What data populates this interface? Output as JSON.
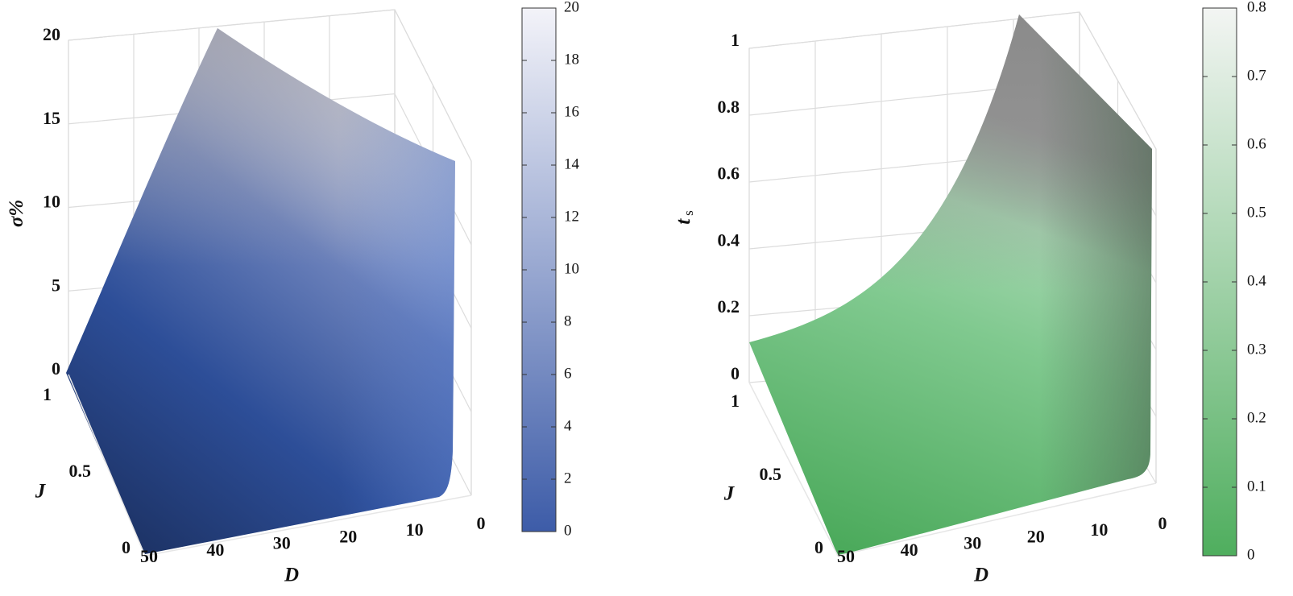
{
  "chart_data": [
    {
      "type": "surface",
      "zlabel": "σ%",
      "ylabel": "J",
      "xlabel": "D",
      "xlim": [
        0,
        50
      ],
      "xticks": [
        0,
        10,
        20,
        30,
        40,
        50
      ],
      "ylim": [
        0,
        1
      ],
      "yticks": [
        0,
        0.5,
        1
      ],
      "zlim": [
        0,
        20
      ],
      "zticks": [
        0,
        5,
        10,
        15,
        20
      ],
      "grid": true,
      "colorbar": {
        "lim": [
          0,
          20
        ],
        "ticks": [
          0,
          2,
          4,
          6,
          8,
          10,
          12,
          14,
          16,
          18,
          20
        ],
        "colors": [
          "#3d5ca8",
          "#f3f3f9"
        ]
      }
    },
    {
      "type": "surface",
      "zlabel": "t",
      "zlabel_subscript": "s",
      "ylabel": "J",
      "xlabel": "D",
      "xlim": [
        0,
        50
      ],
      "xticks": [
        0,
        10,
        20,
        30,
        40,
        50
      ],
      "ylim": [
        0,
        1
      ],
      "yticks": [
        0,
        0.5,
        1
      ],
      "zlim": [
        0,
        1
      ],
      "zticks": [
        0,
        0.2,
        0.4,
        0.6,
        0.8,
        1
      ],
      "grid": true,
      "colorbar": {
        "lim": [
          0,
          0.8
        ],
        "ticks": [
          0,
          0.1,
          0.2,
          0.3,
          0.4,
          0.5,
          0.6,
          0.7,
          0.8
        ],
        "colors": [
          "#4fae5e",
          "#f3f5f3"
        ]
      }
    }
  ]
}
